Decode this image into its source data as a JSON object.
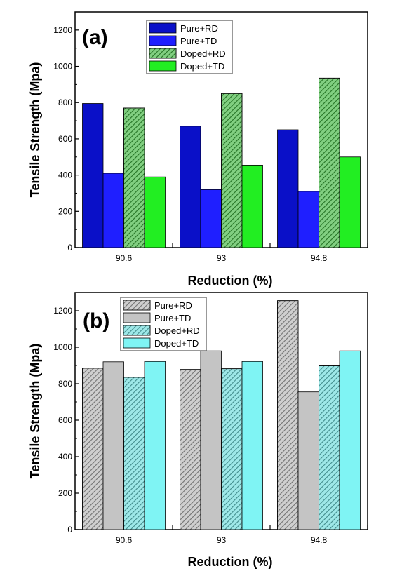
{
  "chart_data": [
    {
      "type": "bar",
      "panel_label": "(a)",
      "categories": [
        "90.6",
        "93",
        "94.8"
      ],
      "xlabel": "Reduction (%)",
      "ylabel": "Tensile Strength (Mpa)",
      "ylim": [
        0,
        1300
      ],
      "yticks": [
        0,
        200,
        400,
        600,
        800,
        1000,
        1200
      ],
      "legend_position": "top-center",
      "grid": false,
      "series": [
        {
          "name": "Pure+RD",
          "values": [
            795,
            670,
            650
          ],
          "color": "#0a10c8",
          "hatch": false
        },
        {
          "name": "Pure+TD",
          "values": [
            410,
            320,
            310
          ],
          "color": "#1f1fff",
          "hatch": false
        },
        {
          "name": "Doped+RD",
          "values": [
            770,
            850,
            935
          ],
          "color": "#1aa81a",
          "hatch": true
        },
        {
          "name": "Doped+TD",
          "values": [
            390,
            455,
            500
          ],
          "color": "#22ee22",
          "hatch": false
        }
      ]
    },
    {
      "type": "bar",
      "panel_label": "(b)",
      "categories": [
        "90.6",
        "93",
        "94.8"
      ],
      "xlabel": "Reduction (%)",
      "ylabel": "Tensile Strength (Mpa)",
      "ylim": [
        0,
        1300
      ],
      "yticks": [
        0,
        200,
        400,
        600,
        800,
        1000,
        1200
      ],
      "legend_position": "top-left",
      "grid": false,
      "series": [
        {
          "name": "Pure+RD",
          "values": [
            885,
            878,
            1255
          ],
          "color": "#a8a8a8",
          "hatch": true
        },
        {
          "name": "Pure+TD",
          "values": [
            920,
            980,
            755
          ],
          "color": "#c4c4c4",
          "hatch": false
        },
        {
          "name": "Doped+RD",
          "values": [
            835,
            882,
            898
          ],
          "color": "#4fd6d6",
          "hatch": true
        },
        {
          "name": "Doped+TD",
          "values": [
            922,
            922,
            980
          ],
          "color": "#7ff4f4",
          "hatch": false
        }
      ]
    }
  ]
}
